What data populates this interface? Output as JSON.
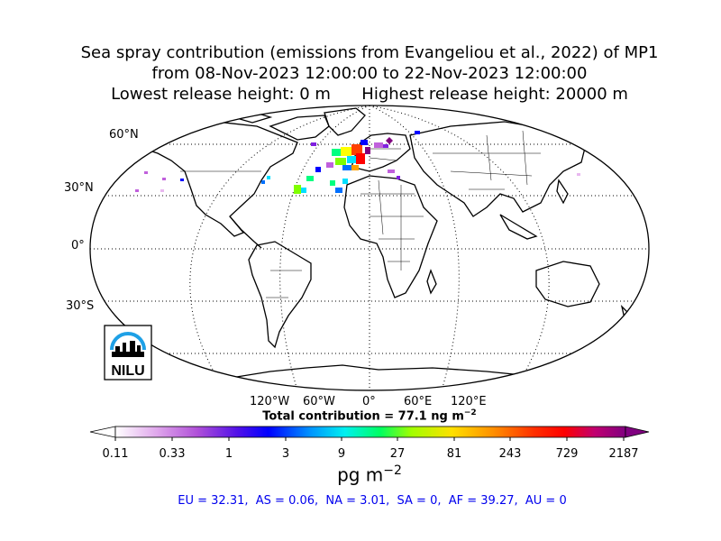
{
  "title": {
    "line1": "Sea spray contribution (emissions from Evangeliou et al., 2022) of MP1",
    "line2": "from 08-Nov-2023 12:00:00 to 22-Nov-2023 12:00:00",
    "line3": "Lowest release height: 0 m      Highest release height: 20000 m"
  },
  "map": {
    "projection": "Robinson",
    "lat_labels": [
      "60°N",
      "30°N",
      "0°",
      "30°S"
    ],
    "lon_labels": [
      "120°W",
      "60°W",
      "0°",
      "60°E",
      "120°E"
    ],
    "gridlines": "dotted",
    "logo_text": "NILU"
  },
  "total_contribution": {
    "label": "Total contribution = 77.1 ng m",
    "exponent": "−2"
  },
  "colorbar": {
    "ticks": [
      "0.11",
      "0.33",
      "1",
      "3",
      "9",
      "27",
      "81",
      "243",
      "729",
      "2187"
    ],
    "unit": "pg m",
    "unit_exponent": "−2",
    "colors": [
      "#ffffff",
      "#e9b8f0",
      "#c060dc",
      "#8020e0",
      "#0000ff",
      "#0070ff",
      "#00e0ff",
      "#00ff80",
      "#80ff00",
      "#ffff00",
      "#ffa000",
      "#ff4000",
      "#ff0000",
      "#d00060",
      "#800080"
    ]
  },
  "regions": "EU = 32.31,  AS = 0.06,  NA = 3.01,  SA = 0,  AF = 39.27,  AU = 0"
}
